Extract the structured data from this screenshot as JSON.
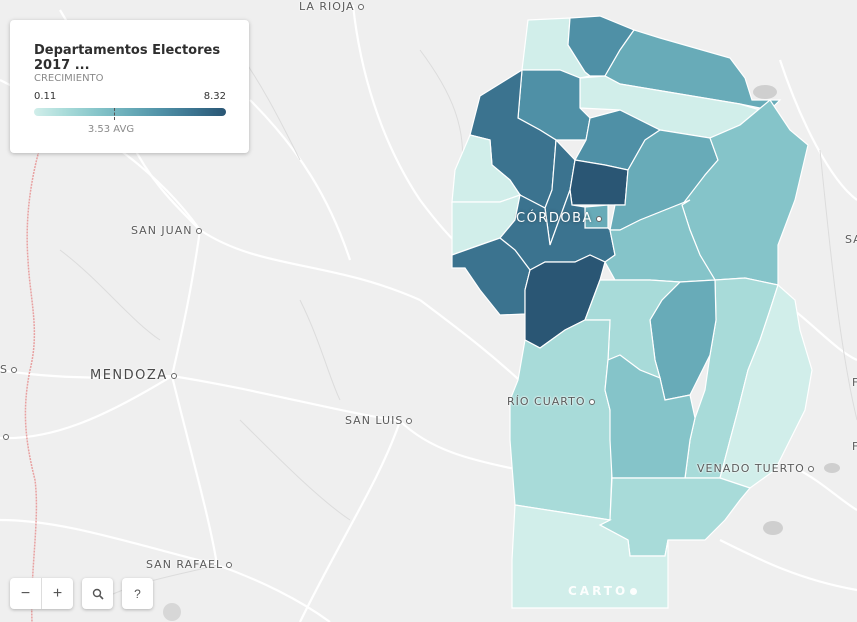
{
  "legend": {
    "title": "Departamentos Electores 2017 ...",
    "variable": "CRECIMIENTO",
    "min_label": "0.11",
    "max_label": "8.32",
    "min": 0.11,
    "max": 8.32,
    "avg": 3.53,
    "avg_label": "3.53 AVG",
    "ramp_colors": [
      "#d1eeea",
      "#a8dbd9",
      "#85c4c9",
      "#68abb8",
      "#4f90a6",
      "#3b738f",
      "#2a5674"
    ]
  },
  "cities": {
    "la_rioja": "LA RIOJA",
    "san_juan": "SAN JUAN",
    "mendoza": "MENDOZA",
    "san_luis": "SAN LUIS",
    "cordoba": "CÓRDOBA",
    "rio_cuarto": "RÍO CUARTO",
    "venado_tuerto": "VENADO TUERTO",
    "san_rafael": "SAN RAFAEL",
    "edge_s": "S",
    "edge_sa": "SA",
    "edge_f1": "F",
    "edge_f2": "F"
  },
  "controls": {
    "zoom_out": "−",
    "zoom_in": "+",
    "search": "⚲",
    "help": "?"
  },
  "attribution": "CARTO",
  "colors": {
    "background": "#efefef",
    "roads": "#ffffff",
    "border_red": "#e8a0a0"
  }
}
